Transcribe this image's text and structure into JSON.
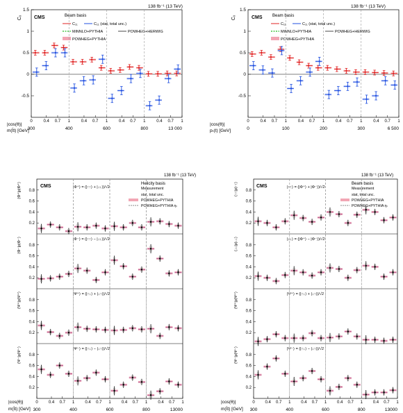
{
  "colors": {
    "red": "#e02020",
    "blue": "#1f4fe0",
    "green": "#22bb22",
    "gray": "#666666",
    "pred_band": "#f2a6b4",
    "pred_line": "#8a3a8a",
    "black": "#000000",
    "stat": "#999999"
  },
  "figure": {
    "lumi": "138 fb⁻¹ (13 TeV)",
    "cms": "CMS"
  },
  "panels": [
    {
      "legend_title": "Beam basis",
      "legend": [
        "C₁₁",
        "C₁₁ (stat, total unc.)",
        "MiNNLO+PYTHIA",
        "POWHEG+HERWIG",
        "POWHEG+PYTHIA"
      ],
      "ylabel": "Cᵢᵢ",
      "xlabel1": "|cos(θ)|",
      "xlabel2": "m(t̄t) [GeV]",
      "sub_ticks": [
        "0",
        "0.4",
        "0.7",
        "1"
      ],
      "bin_edges": [
        "300",
        "400",
        "600",
        "800",
        "13 000"
      ]
    },
    {
      "legend_title": "Beam basis",
      "legend": [
        "C₁₁",
        "C₁₁ (stat, total unc.)",
        "MiNNLO+PYTHIA",
        "POWHEG+HERWIG",
        "POWHEG+PYTHIA"
      ],
      "ylabel": "Cᵢᵢ",
      "xlabel1": "|cos(θ)|",
      "xlabel2": "pₜ(t) [GeV]",
      "sub_ticks": [
        "0",
        "0.4",
        "0.7",
        "1"
      ],
      "bin_edges": [
        "0",
        "100",
        "200",
        "300",
        "6 500"
      ]
    },
    {
      "legend_title": "Helicity basis",
      "legend": [
        "Measurement",
        "stat, total unc.",
        "POWHEG+PYTHIA",
        "POWHEG+PYTHIA ηₜ"
      ],
      "rows": [
        "|Φ⁺⟩ = (|↑↑⟩ + |↓↓⟩)/√2",
        "|Φ⁻⟩ = (|↑↑⟩ − |↓↓⟩)/√2",
        "|Ψ⁺⟩ = (|↑↓⟩ + |↓↑⟩)/√2",
        "|Ψ⁻⟩ = (|↑↓⟩ − |↓↑⟩)/√2"
      ],
      "row_ylabels": [
        "⟨Φ⁺|ρ|Φ⁺⟩",
        "⟨Φ⁻|ρ|Φ⁻⟩",
        "⟨Ψ⁺|ρ|Ψ⁺⟩",
        "⟨Ψ⁻|ρ|Ψ⁻⟩"
      ],
      "xlabel1": "|cos(θ)|",
      "xlabel2": "m(t̄t) [GeV]",
      "sub_ticks": [
        "0",
        "0.4",
        "0.7",
        "1"
      ],
      "bin_edges": [
        "300",
        "400",
        "600",
        "800",
        "13000"
      ]
    },
    {
      "legend_title": "Beam basis",
      "legend": [
        "Measurement",
        "stat, total unc.",
        "POWHEG+PYTHIA",
        "POWHEG+PYTHIA ηₜ"
      ],
      "rows": [
        "|↑↑⟩ = (|Φ⁺⟩ + |Φ⁻⟩)/√2",
        "|↓↓⟩ = (|Φ⁺⟩ − |Φ⁻⟩)/√2",
        "|Ψ⁺⟩ = (|↑↓⟩ + |↓↑⟩)/√2",
        "|Ψ⁻⟩ = (|↑↓⟩ − |↓↑⟩)/√2"
      ],
      "row_ylabels": [
        "⟨↑↑|ρ|↑↑⟩",
        "⟨↓↓|ρ|↓↓⟩",
        "⟨Ψ⁺|ρ|Ψ⁺⟩",
        "⟨Ψ⁻|ρ|Ψ⁻⟩"
      ],
      "xlabel1": "|cos(θ)|",
      "xlabel2": "m(t̄t) [GeV]",
      "sub_ticks": [
        "0",
        "0.4",
        "0.7",
        "1"
      ],
      "bin_edges": [
        "300",
        "400",
        "600",
        "800",
        "13000"
      ]
    }
  ],
  "chart_data": [
    {
      "type": "scatter",
      "xlabel": "m(t̄t) [GeV] × |cos(θ)|",
      "ylabel": "Cᵢᵢ",
      "ylim": [
        -1,
        1.5
      ],
      "yticks": [
        -0.5,
        0,
        0.5,
        1,
        1.5
      ],
      "series": [
        {
          "name": "C₁₁",
          "values": [
            0.5,
            0.5,
            0.67,
            0.62,
            0.29,
            0.29,
            0.34,
            0.15,
            0.08,
            0.1,
            0.17,
            0.15,
            0.01,
            0.01,
            0.02,
            0.02
          ]
        },
        {
          "name": "C₁₁",
          "values": [
            0.05,
            0.2,
            0.5,
            0.5,
            -0.32,
            -0.15,
            -0.13,
            0.35,
            -0.56,
            -0.38,
            -0.1,
            0.02,
            -0.73,
            -0.6,
            -0.1,
            0.12
          ]
        }
      ]
    },
    {
      "type": "scatter",
      "xlabel": "pₜ(t) [GeV] × |cos(θ)|",
      "ylabel": "Cᵢᵢ",
      "ylim": [
        -1,
        1.5
      ],
      "yticks": [
        -0.5,
        0,
        0.5,
        1,
        1.5
      ],
      "series": [
        {
          "name": "C₁₁",
          "values": [
            0.47,
            0.5,
            0.4,
            0.58,
            0.38,
            0.28,
            0.2,
            0.15,
            0.15,
            0.12,
            0.08,
            0.05,
            0.05,
            0.04,
            0.03,
            0.02
          ]
        },
        {
          "name": "C₁₁",
          "values": [
            0.2,
            0.1,
            0.03,
            0.55,
            -0.33,
            -0.15,
            0.05,
            0.3,
            -0.47,
            -0.38,
            -0.28,
            -0.18,
            -0.58,
            -0.5,
            -0.15,
            -0.25
          ]
        }
      ]
    },
    {
      "type": "scatter",
      "ylim": [
        0,
        1
      ],
      "yticks": [
        0.2,
        0.4,
        0.6,
        0.8
      ],
      "rows": [
        {
          "values": [
            0.1,
            0.17,
            0.12,
            0.05,
            0.13,
            0.12,
            0.15,
            0.1,
            0.14,
            0.12,
            0.2,
            0.12,
            0.22,
            0.23,
            0.18,
            0.15
          ]
        },
        {
          "values": [
            0.18,
            0.19,
            0.22,
            0.27,
            0.37,
            0.33,
            0.16,
            0.3,
            0.52,
            0.41,
            0.22,
            0.35,
            0.73,
            0.55,
            0.28,
            0.3
          ]
        },
        {
          "values": [
            0.33,
            0.21,
            0.14,
            0.2,
            0.3,
            0.27,
            0.26,
            0.25,
            0.24,
            0.25,
            0.28,
            0.26,
            0.27,
            0.14,
            0.3,
            0.28
          ]
        },
        {
          "values": [
            0.53,
            0.43,
            0.6,
            0.45,
            0.32,
            0.37,
            0.47,
            0.35,
            0.14,
            0.25,
            0.38,
            0.3,
            0.06,
            0.13,
            0.31,
            0.25
          ]
        }
      ]
    },
    {
      "type": "scatter",
      "ylim": [
        0,
        1
      ],
      "yticks": [
        0.2,
        0.4,
        0.6,
        0.8
      ],
      "rows": [
        {
          "values": [
            0.23,
            0.2,
            0.12,
            0.23,
            0.34,
            0.29,
            0.22,
            0.3,
            0.4,
            0.36,
            0.2,
            0.35,
            0.44,
            0.4,
            0.25,
            0.3
          ]
        },
        {
          "values": [
            0.23,
            0.2,
            0.14,
            0.25,
            0.33,
            0.3,
            0.24,
            0.3,
            0.38,
            0.36,
            0.2,
            0.34,
            0.42,
            0.4,
            0.22,
            0.3
          ]
        },
        {
          "values": [
            0.04,
            0.08,
            0.17,
            0.1,
            0.1,
            0.1,
            0.19,
            0.1,
            0.11,
            0.13,
            0.22,
            0.13,
            0.07,
            0.07,
            0.05,
            0.07
          ]
        },
        {
          "values": [
            0.43,
            0.58,
            0.73,
            0.45,
            0.31,
            0.37,
            0.5,
            0.35,
            0.14,
            0.21,
            0.37,
            0.25,
            0.07,
            0.11,
            0.11,
            0.15
          ]
        }
      ]
    }
  ]
}
